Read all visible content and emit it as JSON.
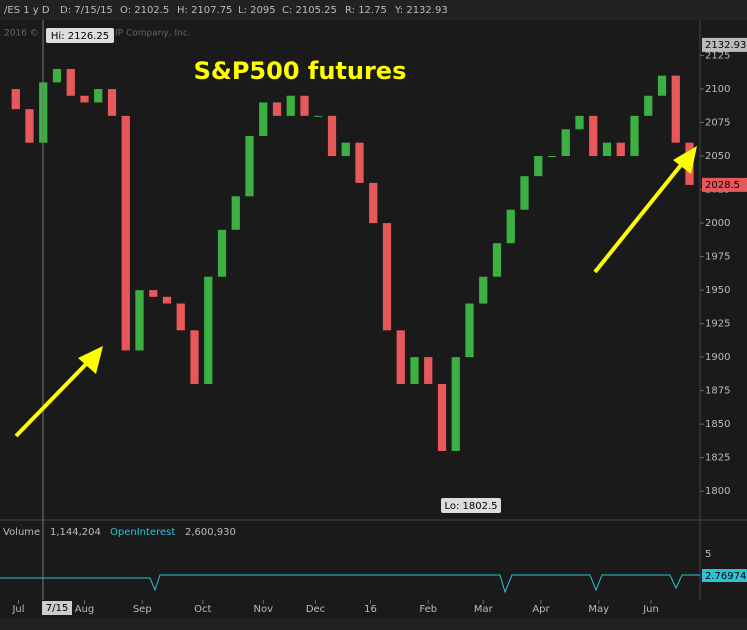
{
  "toolbar": {
    "symbol": "/ES 1 y D",
    "date": "D: 7/15/15",
    "open": "O: 2102.5",
    "high": "H: 2107.75",
    "low": "L: 2095",
    "close": "C: 2105.25",
    "range": "R: 12.75",
    "y": "Y: 2132.93",
    "copyright_left": "2016 ©",
    "copyright_right": "IP Company, Inc."
  },
  "chart_data": {
    "type": "candlestick",
    "title": "S&P500 futures",
    "x": [
      0,
      5,
      10,
      15,
      20,
      25,
      30,
      35,
      40,
      45,
      50,
      55,
      60,
      65,
      70,
      75,
      80,
      85,
      90,
      95,
      100,
      105,
      110,
      115,
      120,
      125,
      130,
      135,
      140,
      145,
      150,
      155,
      160,
      165,
      170,
      175,
      180,
      185,
      190,
      195,
      200,
      205,
      210,
      215,
      220,
      225,
      230,
      235,
      240,
      245,
      250
    ],
    "close": [
      2100,
      2085,
      2060,
      2105,
      2115,
      2095,
      2090,
      2100,
      2080,
      1905,
      1950,
      1945,
      1940,
      1920,
      1880,
      1960,
      1995,
      2020,
      2065,
      2090,
      2080,
      2095,
      2080,
      2080,
      2050,
      2060,
      2030,
      2000,
      1920,
      1880,
      1900,
      1880,
      1830,
      1900,
      1940,
      1960,
      1985,
      2010,
      2035,
      2050,
      2050,
      2070,
      2080,
      2050,
      2060,
      2050,
      2080,
      2095,
      2110,
      2060,
      2028.5
    ],
    "up_color": "#3cb043",
    "down_color": "#e8585a",
    "ylim": [
      1780,
      2153
    ],
    "yticks": [
      1800,
      1825,
      1850,
      1875,
      1900,
      1925,
      1950,
      1975,
      2000,
      2025,
      2050,
      2075,
      2100,
      2125
    ],
    "xlim": [
      0,
      252
    ],
    "xticks": [
      {
        "value": 6,
        "label": "Jul"
      },
      {
        "value": 30,
        "label": "Aug"
      },
      {
        "value": 51,
        "label": "Sep"
      },
      {
        "value": 73,
        "label": "Oct"
      },
      {
        "value": 95,
        "label": "Nov"
      },
      {
        "value": 114,
        "label": "Dec"
      },
      {
        "value": 134,
        "label": "16"
      },
      {
        "value": 155,
        "label": "Feb"
      },
      {
        "value": 175,
        "label": "Mar"
      },
      {
        "value": 196,
        "label": "Apr"
      },
      {
        "value": 217,
        "label": "May"
      },
      {
        "value": 236,
        "label": "Jun"
      }
    ],
    "price_markers": [
      {
        "value": 2132.93,
        "color": "#bbbbbb"
      },
      {
        "value": 2028.5,
        "color": "#e8585a"
      }
    ],
    "hi_label": "Hi: 2126.25",
    "lo_label": "Lo: 1802.5",
    "cursor_label": "7/15",
    "volume_label": "Volume",
    "volume_value": "1,144,204",
    "oi_label": "OpenInterest",
    "oi_value": "2,600,930",
    "vol_axis_top": "5",
    "oi_axis_label": "2.76974"
  }
}
